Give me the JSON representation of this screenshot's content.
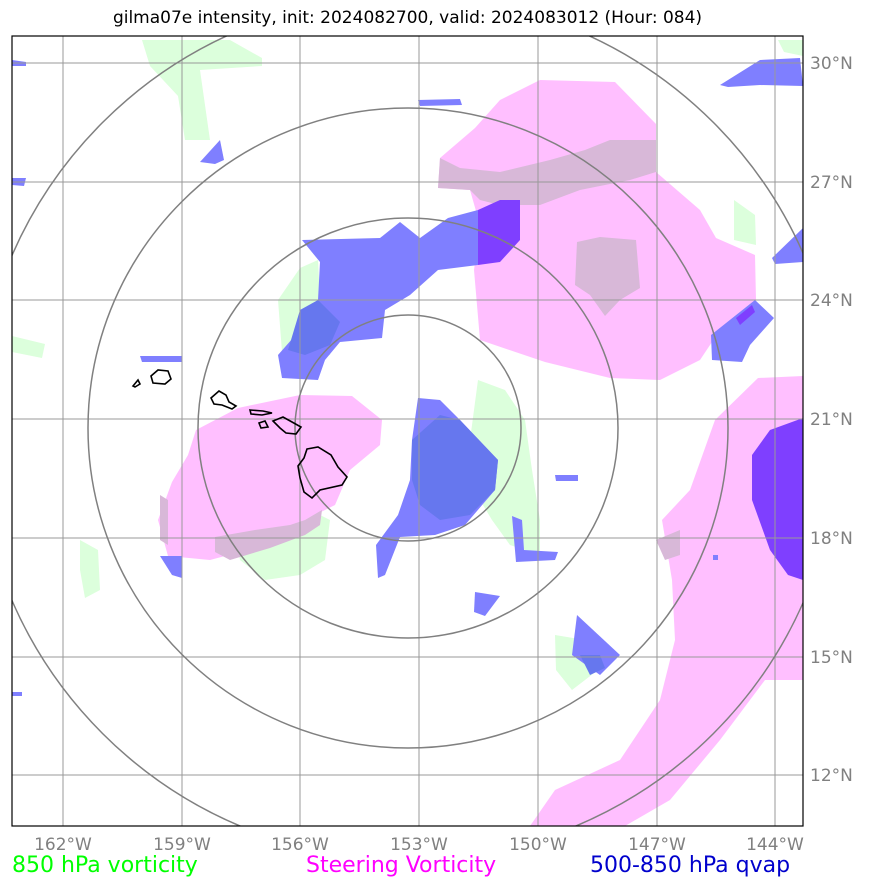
{
  "title": "gilma07e intensity, init: 2024082700, valid: 2024083012 (Hour: 084)",
  "lon_ticks": [
    "162°W",
    "159°W",
    "156°W",
    "153°W",
    "150°W",
    "147°W",
    "144°W"
  ],
  "lat_ticks": [
    "30°N",
    "27°N",
    "24°N",
    "21°N",
    "18°N",
    "15°N",
    "12°N"
  ],
  "legend": {
    "green": {
      "label": "850 hPa vorticity",
      "color": "#00ff00"
    },
    "pink": {
      "label": "Steering Vorticity",
      "color": "#ff00ff"
    },
    "blue": {
      "label": "500-850 hPa qvap",
      "color": "#0000cc"
    }
  },
  "fill_colors": {
    "vorticity_850": "#dcffdc",
    "steering_vorticity": "#ffbfff",
    "qvap": "#7f7fff",
    "qvap_strong": "#7f3fff",
    "overlap": "#d8b8d8"
  },
  "range_rings": {
    "count": 4,
    "color": "#808080"
  },
  "coastline": {
    "region": "Hawaiian Islands",
    "color": "#000000"
  }
}
